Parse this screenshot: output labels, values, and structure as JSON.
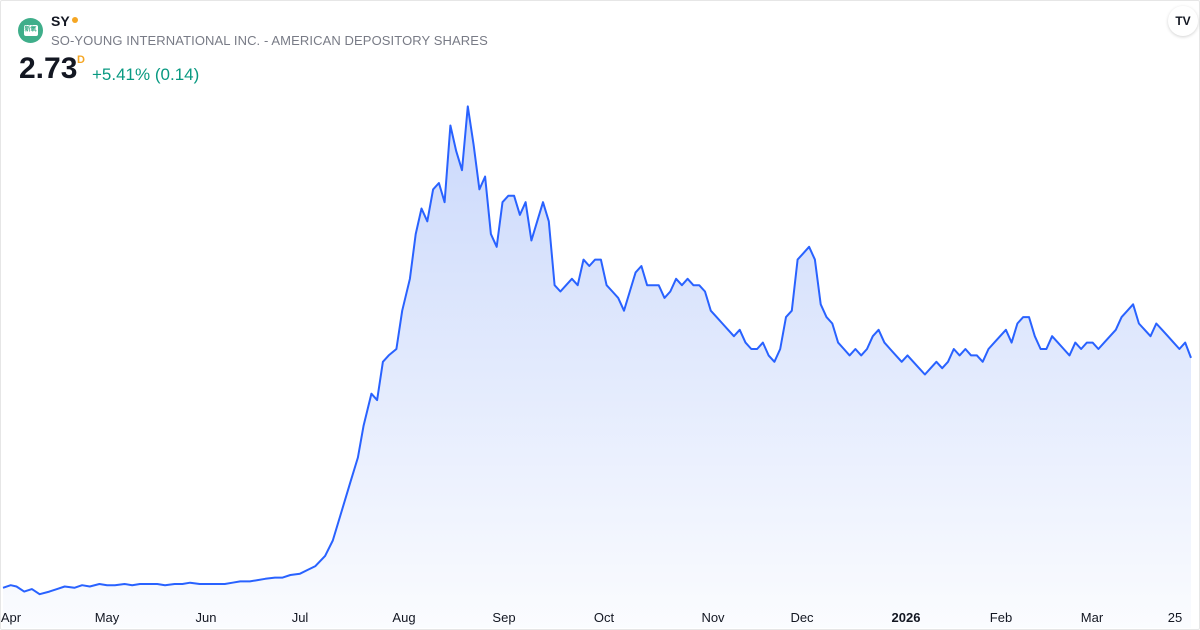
{
  "header": {
    "ticker": "SY",
    "company": "SO-YOUNG INTERNATIONAL INC. - AMERICAN DEPOSITORY SHARES",
    "price": "2.73",
    "price_flag": "D",
    "change": "+5.41% (0.14)",
    "logo_text": "新氧",
    "badge": "TV"
  },
  "colors": {
    "line": "#2962ff",
    "area_top": "#c7d6fb",
    "positive": "#089981",
    "status_dot": "#f5a623"
  },
  "chart_data": {
    "type": "area",
    "xlabels": [
      "Apr",
      "May",
      "Jun",
      "Jul",
      "Aug",
      "Sep",
      "Oct",
      "Nov",
      "Dec",
      "2026",
      "Feb",
      "Mar",
      "25"
    ],
    "bold_labels": [
      "2026"
    ],
    "points": [
      [
        0,
        0.93
      ],
      [
        4,
        0.95
      ],
      [
        7,
        0.94
      ],
      [
        11,
        0.9
      ],
      [
        15,
        0.92
      ],
      [
        19,
        0.88
      ],
      [
        24,
        0.9
      ],
      [
        28,
        0.92
      ],
      [
        32,
        0.94
      ],
      [
        37,
        0.93
      ],
      [
        41,
        0.95
      ],
      [
        45,
        0.94
      ],
      [
        50,
        0.96
      ],
      [
        54,
        0.95
      ],
      [
        58,
        0.95
      ],
      [
        63,
        0.96
      ],
      [
        67,
        0.95
      ],
      [
        71,
        0.96
      ],
      [
        76,
        0.96
      ],
      [
        80,
        0.96
      ],
      [
        84,
        0.95
      ],
      [
        89,
        0.96
      ],
      [
        93,
        0.96
      ],
      [
        97,
        0.97
      ],
      [
        102,
        0.96
      ],
      [
        106,
        0.96
      ],
      [
        110,
        0.96
      ],
      [
        115,
        0.96
      ],
      [
        119,
        0.97
      ],
      [
        123,
        0.98
      ],
      [
        128,
        0.98
      ],
      [
        132,
        0.99
      ],
      [
        136,
        1.0
      ],
      [
        141,
        1.01
      ],
      [
        145,
        1.01
      ],
      [
        149,
        1.03
      ],
      [
        154,
        1.04
      ],
      [
        158,
        1.07
      ],
      [
        162,
        1.1
      ],
      [
        167,
        1.18
      ],
      [
        171,
        1.3
      ],
      [
        175,
        1.5
      ],
      [
        180,
        1.75
      ],
      [
        184,
        1.95
      ],
      [
        187,
        2.2
      ],
      [
        191,
        2.45
      ],
      [
        194,
        2.4
      ],
      [
        197,
        2.7
      ],
      [
        200,
        2.75
      ],
      [
        204,
        2.8
      ],
      [
        207,
        3.1
      ],
      [
        211,
        3.35
      ],
      [
        214,
        3.7
      ],
      [
        217,
        3.9
      ],
      [
        220,
        3.8
      ],
      [
        223,
        4.05
      ],
      [
        226,
        4.1
      ],
      [
        229,
        3.95
      ],
      [
        232,
        4.55
      ],
      [
        235,
        4.35
      ],
      [
        238,
        4.2
      ],
      [
        241,
        4.7
      ],
      [
        244,
        4.4
      ],
      [
        247,
        4.05
      ],
      [
        250,
        4.15
      ],
      [
        253,
        3.7
      ],
      [
        256,
        3.6
      ],
      [
        259,
        3.95
      ],
      [
        262,
        4.0
      ],
      [
        265,
        4.0
      ],
      [
        268,
        3.85
      ],
      [
        271,
        3.95
      ],
      [
        274,
        3.65
      ],
      [
        277,
        3.8
      ],
      [
        280,
        3.95
      ],
      [
        283,
        3.8
      ],
      [
        286,
        3.3
      ],
      [
        289,
        3.25
      ],
      [
        292,
        3.3
      ],
      [
        295,
        3.35
      ],
      [
        298,
        3.3
      ],
      [
        301,
        3.5
      ],
      [
        304,
        3.45
      ],
      [
        307,
        3.5
      ],
      [
        310,
        3.5
      ],
      [
        313,
        3.3
      ],
      [
        316,
        3.25
      ],
      [
        319,
        3.2
      ],
      [
        322,
        3.1
      ],
      [
        325,
        3.25
      ],
      [
        328,
        3.4
      ],
      [
        331,
        3.45
      ],
      [
        334,
        3.3
      ],
      [
        337,
        3.3
      ],
      [
        340,
        3.3
      ],
      [
        343,
        3.2
      ],
      [
        346,
        3.25
      ],
      [
        349,
        3.35
      ],
      [
        352,
        3.3
      ],
      [
        355,
        3.35
      ],
      [
        358,
        3.3
      ],
      [
        361,
        3.3
      ],
      [
        364,
        3.25
      ],
      [
        367,
        3.1
      ],
      [
        370,
        3.05
      ],
      [
        373,
        3.0
      ],
      [
        376,
        2.95
      ],
      [
        379,
        2.9
      ],
      [
        382,
        2.95
      ],
      [
        385,
        2.85
      ],
      [
        388,
        2.8
      ],
      [
        391,
        2.8
      ],
      [
        394,
        2.85
      ],
      [
        397,
        2.75
      ],
      [
        400,
        2.7
      ],
      [
        403,
        2.8
      ],
      [
        406,
        3.05
      ],
      [
        409,
        3.1
      ],
      [
        412,
        3.5
      ],
      [
        415,
        3.55
      ],
      [
        418,
        3.6
      ],
      [
        421,
        3.5
      ],
      [
        424,
        3.15
      ],
      [
        427,
        3.05
      ],
      [
        430,
        3.0
      ],
      [
        433,
        2.85
      ],
      [
        436,
        2.8
      ],
      [
        439,
        2.75
      ],
      [
        442,
        2.8
      ],
      [
        445,
        2.75
      ],
      [
        448,
        2.8
      ],
      [
        451,
        2.9
      ],
      [
        454,
        2.95
      ],
      [
        457,
        2.85
      ],
      [
        460,
        2.8
      ],
      [
        463,
        2.75
      ],
      [
        466,
        2.7
      ],
      [
        469,
        2.75
      ],
      [
        472,
        2.7
      ],
      [
        475,
        2.65
      ],
      [
        478,
        2.6
      ],
      [
        481,
        2.65
      ],
      [
        484,
        2.7
      ],
      [
        487,
        2.65
      ],
      [
        490,
        2.7
      ],
      [
        493,
        2.8
      ],
      [
        496,
        2.75
      ],
      [
        499,
        2.8
      ],
      [
        502,
        2.75
      ],
      [
        505,
        2.75
      ],
      [
        508,
        2.7
      ],
      [
        511,
        2.8
      ],
      [
        514,
        2.85
      ],
      [
        517,
        2.9
      ],
      [
        520,
        2.95
      ],
      [
        523,
        2.85
      ],
      [
        526,
        3.0
      ],
      [
        529,
        3.05
      ],
      [
        532,
        3.05
      ],
      [
        535,
        2.9
      ],
      [
        538,
        2.8
      ],
      [
        541,
        2.8
      ],
      [
        544,
        2.9
      ],
      [
        547,
        2.85
      ],
      [
        550,
        2.8
      ],
      [
        553,
        2.75
      ],
      [
        556,
        2.85
      ],
      [
        559,
        2.8
      ],
      [
        562,
        2.85
      ],
      [
        565,
        2.85
      ],
      [
        568,
        2.8
      ],
      [
        571,
        2.85
      ],
      [
        574,
        2.9
      ],
      [
        577,
        2.95
      ],
      [
        580,
        3.05
      ],
      [
        583,
        3.1
      ],
      [
        586,
        3.15
      ],
      [
        589,
        3.0
      ],
      [
        592,
        2.95
      ],
      [
        595,
        2.9
      ],
      [
        598,
        3.0
      ],
      [
        601,
        2.95
      ],
      [
        604,
        2.9
      ],
      [
        607,
        2.85
      ],
      [
        610,
        2.8
      ],
      [
        613,
        2.85
      ],
      [
        616,
        2.73
      ]
    ],
    "ylim": [
      0.85,
      4.75
    ],
    "xlim": [
      0,
      616
    ]
  }
}
